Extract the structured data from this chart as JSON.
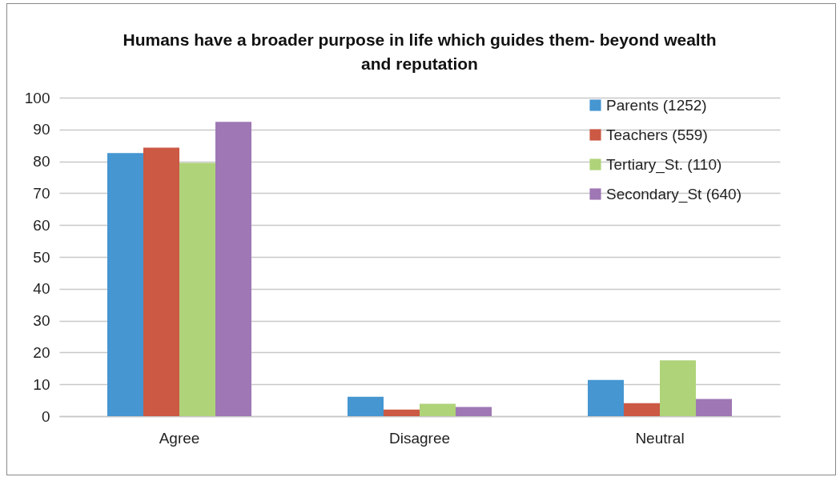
{
  "chart_data": {
    "type": "bar",
    "title": "Humans have a broader purpose in life which guides them- beyond wealth and reputation",
    "categories": [
      "Agree",
      "Disagree",
      "Neutral"
    ],
    "series": [
      {
        "name": "Parents (1252)",
        "color": "#4596d1",
        "values": [
          82.6,
          6.1,
          11.4
        ]
      },
      {
        "name": "Teachers (559)",
        "color": "#cb5944",
        "values": [
          84.3,
          2.1,
          4.1
        ]
      },
      {
        "name": "Tertiary_St. (110)",
        "color": "#afd379",
        "values": [
          79.5,
          3.9,
          17.5
        ]
      },
      {
        "name": "Secondary_St (640)",
        "color": "#9e77b4",
        "values": [
          92.4,
          2.9,
          5.4
        ]
      }
    ],
    "ylim": [
      0,
      100
    ],
    "yticks": [
      0,
      10,
      20,
      30,
      40,
      50,
      60,
      70,
      80,
      90,
      100
    ],
    "grid": "y",
    "legend": "top right"
  }
}
